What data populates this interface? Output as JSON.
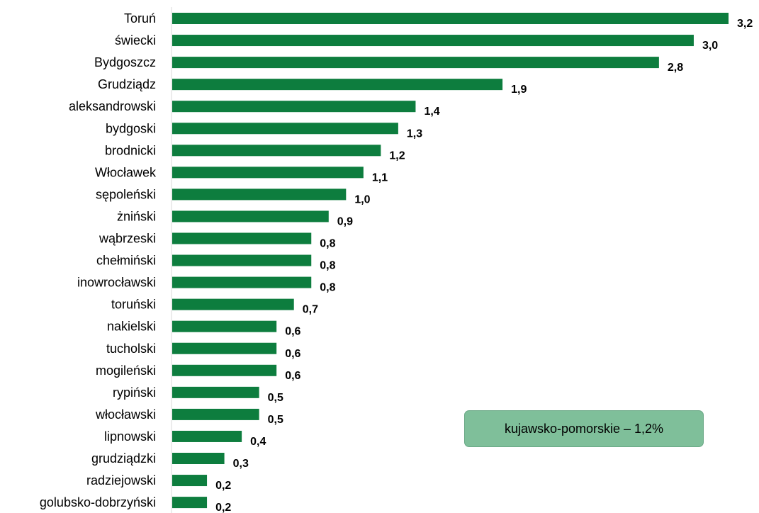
{
  "chart_data": {
    "type": "bar",
    "orientation": "horizontal",
    "categories": [
      "Toruń",
      "świecki",
      "Bydgoszcz",
      "Grudziądz",
      "aleksandrowski",
      "bydgoski",
      "brodnicki",
      "Włocławek",
      "sępoleński",
      "żniński",
      "wąbrzeski",
      "chełmiński",
      "inowrocławski",
      "toruński",
      "nakielski",
      "tucholski",
      "mogileński",
      "rypiński",
      "włocławski",
      "lipnowski",
      "grudziądzki",
      "radziejowski",
      "golubsko-dobrzyński"
    ],
    "values": [
      3.2,
      3.0,
      2.8,
      1.9,
      1.4,
      1.3,
      1.2,
      1.1,
      1.0,
      0.9,
      0.8,
      0.8,
      0.8,
      0.7,
      0.6,
      0.6,
      0.6,
      0.5,
      0.5,
      0.4,
      0.3,
      0.2,
      0.2
    ],
    "value_labels": [
      "3,2",
      "3,0",
      "2,8",
      "1,9",
      "1,4",
      "1,3",
      "1,2",
      "1,1",
      "1,0",
      "0,9",
      "0,8",
      "0,8",
      "0,8",
      "0,7",
      "0,6",
      "0,6",
      "0,6",
      "0,5",
      "0,5",
      "0,4",
      "0,3",
      "0,2",
      "0,2"
    ],
    "bar_color": "#0d7d3e",
    "xlim": [
      0,
      3.2
    ],
    "grid": false,
    "annotation": "kujawsko-pomorskie – 1,2%"
  }
}
